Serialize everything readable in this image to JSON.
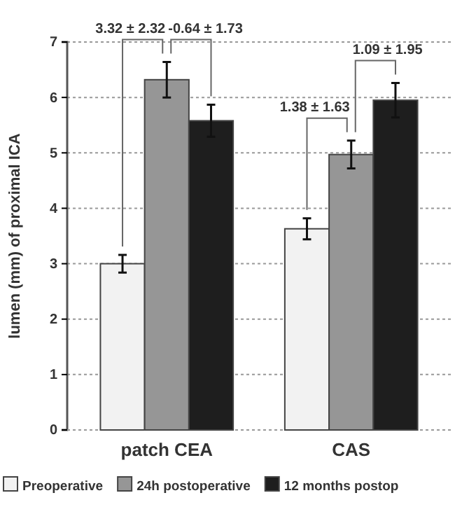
{
  "chart_data": {
    "type": "bar",
    "ylabel": "lumen (mm) of proximal ICA",
    "categories": [
      "patch CEA",
      "CAS"
    ],
    "series": [
      {
        "name": "Preoperative",
        "color": "#f2f2f2",
        "values": [
          3.0,
          3.63
        ],
        "errors": [
          0.16,
          0.19
        ]
      },
      {
        "name": "24h postoperative",
        "color": "#969696",
        "values": [
          6.32,
          4.97
        ],
        "errors": [
          0.32,
          0.25
        ]
      },
      {
        "name": "12 months postop",
        "color": "#1e1e1e",
        "values": [
          5.58,
          5.95
        ],
        "errors": [
          0.29,
          0.31
        ]
      }
    ],
    "ylim": [
      0,
      7
    ],
    "yticks": [
      0,
      1,
      2,
      3,
      4,
      5,
      6,
      7
    ],
    "grid": "y",
    "legend": "bottom",
    "annotations": [
      "3.32 ± 2.32",
      "-0.64 ± 1.73",
      "1.38 ± 1.63",
      "1.09 ± 1.95"
    ]
  }
}
